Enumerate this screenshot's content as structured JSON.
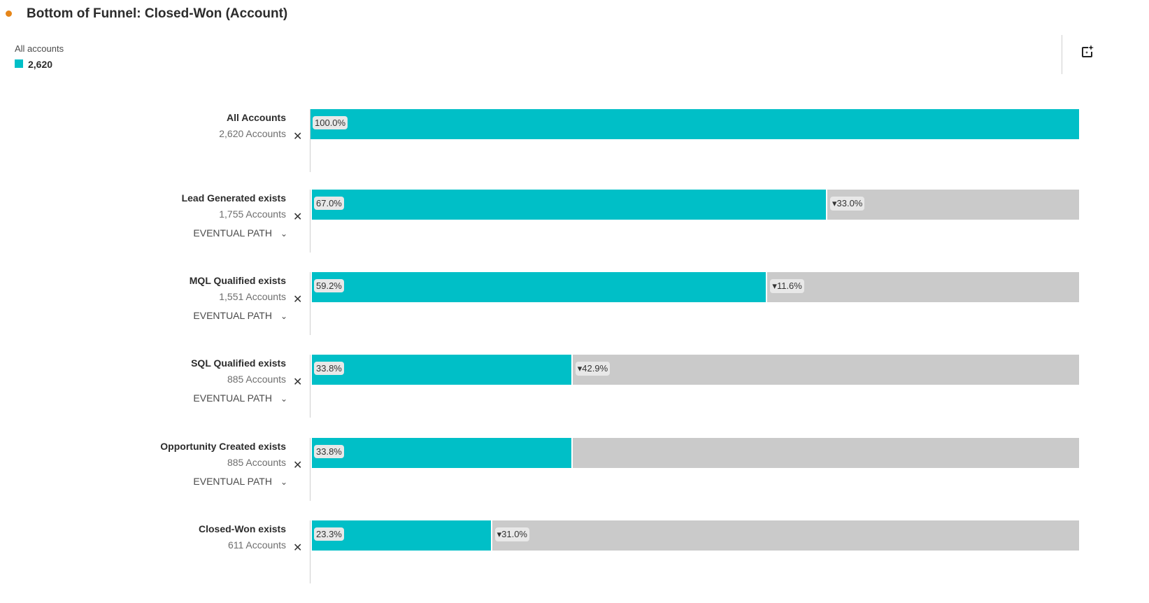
{
  "header": {
    "title": "Bottom of Funnel: Closed-Won (Account)",
    "status_color": "#e68619"
  },
  "legend": {
    "label": "All accounts",
    "value": "2,620",
    "color": "#00bfc7"
  },
  "toolbar": {
    "icon": "ai-insight-icon"
  },
  "chart_data": {
    "type": "bar",
    "orientation": "horizontal-funnel",
    "colors": {
      "retained": "#00bfc7",
      "dropoff": "#cacaca"
    },
    "xlim": [
      0,
      100
    ],
    "path_label": "EVENTUAL PATH",
    "steps": [
      {
        "name": "All Accounts",
        "count": "2,620 Accounts",
        "percent": 100.0,
        "percent_label": "100.0%",
        "drop_label": "",
        "path": false
      },
      {
        "name": "Lead Generated exists",
        "count": "1,755 Accounts",
        "percent": 67.0,
        "percent_label": "67.0%",
        "drop_label": "▾33.0%",
        "path": true
      },
      {
        "name": "MQL Qualified exists",
        "count": "1,551 Accounts",
        "percent": 59.2,
        "percent_label": "59.2%",
        "drop_label": "▾11.6%",
        "path": true
      },
      {
        "name": "SQL Qualified exists",
        "count": "885 Accounts",
        "percent": 33.8,
        "percent_label": "33.8%",
        "drop_label": "▾42.9%",
        "path": true
      },
      {
        "name": "Opportunity Created exists",
        "count": "885 Accounts",
        "percent": 33.8,
        "percent_label": "33.8%",
        "drop_label": "",
        "path": true
      },
      {
        "name": "Closed-Won exists",
        "count": "611 Accounts",
        "percent": 23.3,
        "percent_label": "23.3%",
        "drop_label": "▾31.0%",
        "path": false
      }
    ]
  }
}
